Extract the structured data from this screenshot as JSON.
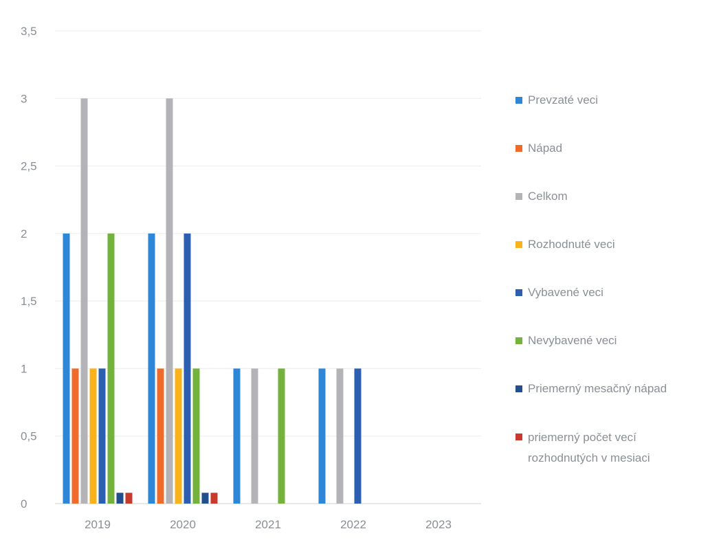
{
  "chart_data": {
    "type": "bar",
    "categories": [
      "2019",
      "2020",
      "2021",
      "2022",
      "2023"
    ],
    "y_ticks": [
      "0",
      "0,5",
      "1",
      "1,5",
      "2",
      "2,5",
      "3",
      "3,5"
    ],
    "ylim": [
      0,
      3.5
    ],
    "grid": true,
    "legend_position": "right",
    "series": [
      {
        "name": "Prevzaté veci",
        "color": "#2e86d6",
        "values": [
          2,
          2,
          1,
          1,
          0
        ]
      },
      {
        "name": "Nápad",
        "color": "#f06a2a",
        "values": [
          1,
          1,
          0,
          0,
          0
        ]
      },
      {
        "name": "Celkom",
        "color": "#b4b4b8",
        "values": [
          3,
          3,
          1,
          1,
          0
        ]
      },
      {
        "name": "Rozhodnuté veci",
        "color": "#f9b21a",
        "values": [
          1,
          1,
          0,
          0,
          0
        ]
      },
      {
        "name": "Vybavené veci",
        "color": "#2d5fb0",
        "values": [
          1,
          2,
          0,
          1,
          0
        ]
      },
      {
        "name": "Nevybavené veci",
        "color": "#73b33c",
        "values": [
          2,
          1,
          1,
          0,
          0
        ]
      },
      {
        "name": "Priemerný mesačný nápad",
        "color": "#234f8c",
        "values": [
          0.08,
          0.08,
          0,
          0,
          0
        ]
      },
      {
        "name": "priemerný počet vecí rozhodnutých v mesiaci",
        "color": "#c83a2c",
        "values": [
          0.08,
          0.08,
          0,
          0,
          0
        ]
      }
    ]
  }
}
